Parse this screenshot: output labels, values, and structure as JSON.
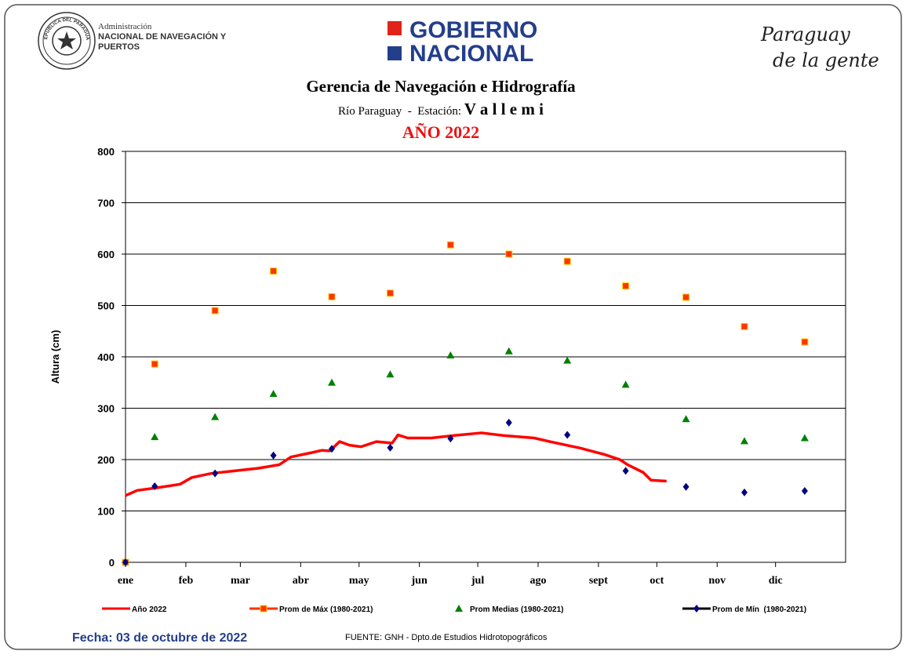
{
  "header": {
    "seal_text": "REPÚBLICA DEL PARAGUAY",
    "agency_small": "Administración",
    "agency_line1": "NACIONAL DE NAVEGACIÓN Y",
    "agency_line2": "PUERTOS",
    "gov_line1": "GOBIERNO",
    "gov_line2": "NACIONAL",
    "slogan_line1": "Paraguay",
    "slogan_line2": "de la gente"
  },
  "chart_data": {
    "type": "line",
    "title": "Gerencia de Navegación e Hidrografía",
    "subtitle": "Río Paraguay  -  Estación: ",
    "station": "V a l l e m i",
    "year_label": "AÑO 2022",
    "y_label": "Altura (cm)",
    "xlim": [
      0,
      370
    ],
    "ylim": [
      0,
      800
    ],
    "xticks": [
      {
        "value": 0,
        "label": "ene"
      },
      {
        "value": 31,
        "label": "feb"
      },
      {
        "value": 59,
        "label": "mar"
      },
      {
        "value": 90,
        "label": "abr"
      },
      {
        "value": 120,
        "label": "may"
      },
      {
        "value": 151,
        "label": "jun"
      },
      {
        "value": 181,
        "label": "jul"
      },
      {
        "value": 212,
        "label": "ago"
      },
      {
        "value": 243,
        "label": "sept"
      },
      {
        "value": 273,
        "label": "oct"
      },
      {
        "value": 304,
        "label": "nov"
      },
      {
        "value": 334,
        "label": "dic"
      }
    ],
    "yticks": [
      0,
      100,
      200,
      300,
      400,
      500,
      600,
      700,
      800
    ],
    "grid": true,
    "series": [
      {
        "name": "Año 2022",
        "color": "#ff0000",
        "marker": "none",
        "x": [
          0,
          6,
          16,
          28,
          34,
          44,
          56,
          68,
          79,
          85,
          95,
          101,
          105,
          110,
          115,
          121,
          129,
          137,
          140,
          145,
          157,
          169,
          183,
          194,
          210,
          218,
          234,
          246,
          254,
          258,
          266,
          270,
          278
        ],
        "values": [
          130,
          140,
          145,
          152,
          165,
          173,
          178,
          183,
          190,
          205,
          213,
          218,
          217,
          235,
          228,
          225,
          235,
          232,
          248,
          242,
          242,
          247,
          252,
          247,
          242,
          235,
          222,
          210,
          200,
          190,
          175,
          160,
          158
        ]
      },
      {
        "name": "Prom de Máx (1980-2021)",
        "color": "#ff3300",
        "marker": "square",
        "x": [
          0,
          15,
          46,
          76,
          106,
          136,
          167,
          197,
          227,
          257,
          288,
          318,
          349
        ],
        "values": [
          0,
          386,
          490,
          567,
          517,
          524,
          618,
          600,
          586,
          538,
          516,
          459,
          429
        ]
      },
      {
        "name": "Prom Medias (1980-2021)",
        "color": "#008000",
        "marker": "triangle",
        "x": [
          15,
          46,
          76,
          106,
          136,
          167,
          197,
          227,
          257,
          288,
          318,
          349
        ],
        "values": [
          244,
          283,
          328,
          350,
          366,
          403,
          411,
          393,
          346,
          279,
          236,
          242
        ]
      },
      {
        "name": "Prom de Mín  (1980-2021)",
        "color": "#000080",
        "marker": "diamond",
        "x": [
          0,
          15,
          46,
          76,
          106,
          136,
          167,
          197,
          227,
          257,
          288,
          318,
          349
        ],
        "values": [
          0,
          148,
          173,
          208,
          221,
          223,
          241,
          272,
          248,
          178,
          147,
          136,
          139
        ]
      }
    ]
  },
  "footer": {
    "date": "Fecha: 03 de octubre de 2022",
    "source": "FUENTE: GNH - Dpto.de Estudios Hidrotopográficos"
  }
}
